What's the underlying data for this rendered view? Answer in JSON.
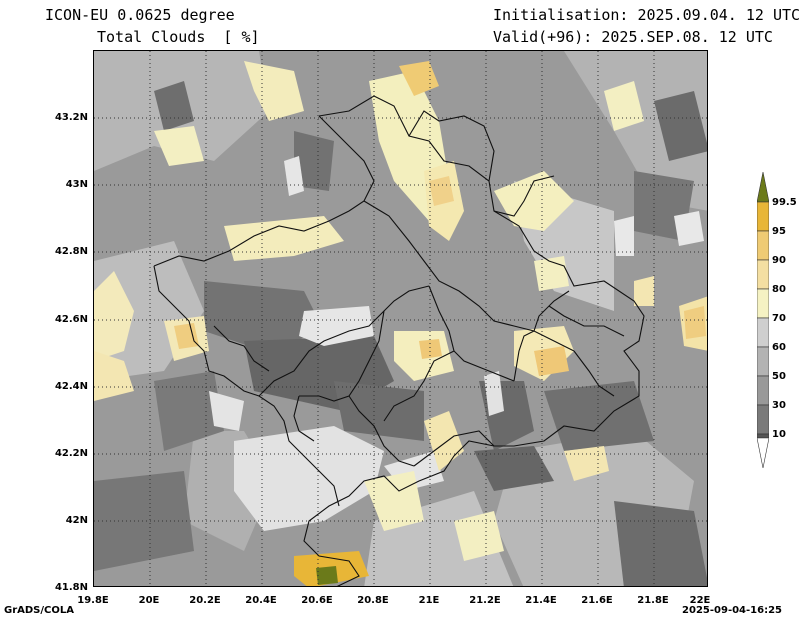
{
  "header": {
    "model": "ICON-EU 0.0625 degree",
    "param": "Total Clouds  [ %]",
    "init": "Initialisation: 2025.09.04. 12 UTC",
    "valid": "Valid(+96): 2025.SEP.08. 12 UTC"
  },
  "axes": {
    "lat_labels": [
      "43.2N",
      "43N",
      "42.8N",
      "42.6N",
      "42.4N",
      "42.2N",
      "42N",
      "41.8N"
    ],
    "lon_labels": [
      "19.8E",
      "20E",
      "20.2E",
      "20.4E",
      "20.6E",
      "20.8E",
      "21E",
      "21.2E",
      "21.4E",
      "21.6E",
      "21.8E",
      "22E"
    ]
  },
  "colorbar": {
    "labels": [
      "99.5",
      "95",
      "90",
      "80",
      "70",
      "60",
      "50",
      "30",
      "10"
    ],
    "colors": [
      "#6b7a1a",
      "#e8b637",
      "#efcb74",
      "#f4dfa2",
      "#f5f2c3",
      "#cfcfcf",
      "#b3b3b3",
      "#999999",
      "#7a7a7a",
      "#555555",
      "#ffffff"
    ]
  },
  "footer": {
    "left": "GrADS/COLA",
    "right": "2025-09-04-16:25"
  }
}
